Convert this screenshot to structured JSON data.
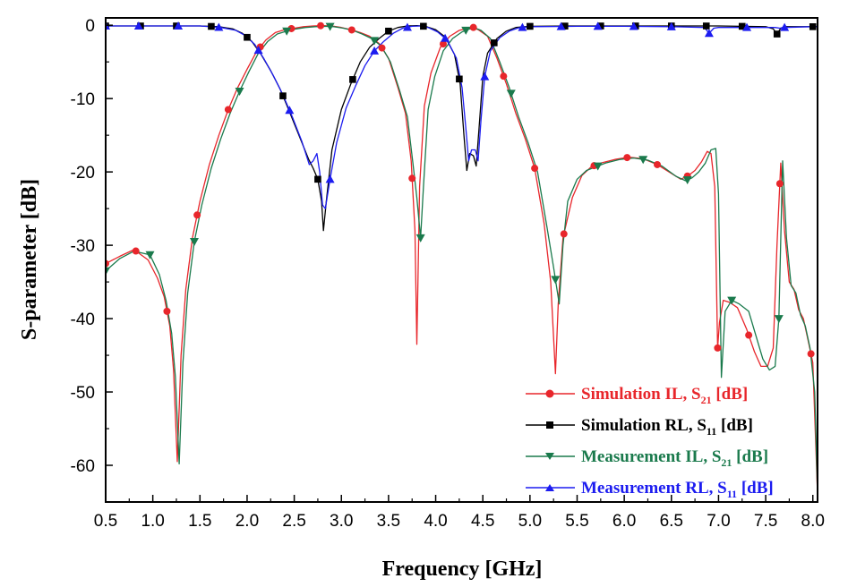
{
  "chart_data": {
    "type": "line",
    "title": "",
    "xlabel": "Frequency [GHz]",
    "ylabel": "S-parameter [dB]",
    "xlim": [
      0.5,
      8.05
    ],
    "ylim": [
      -65,
      1
    ],
    "xticks": [
      0.5,
      1.0,
      1.5,
      2.0,
      2.5,
      3.0,
      3.5,
      4.0,
      4.5,
      5.0,
      5.5,
      6.0,
      6.5,
      7.0,
      7.5,
      8.0
    ],
    "xtick_labels": [
      "0.5",
      "1.0",
      "1.5",
      "2.0",
      "2.5",
      "3.0",
      "3.5",
      "4.0",
      "4.5",
      "5.0",
      "5.5",
      "6.0",
      "6.5",
      "7.0",
      "7.5",
      "8.0"
    ],
    "yticks": [
      0,
      -10,
      -20,
      -30,
      -40,
      -50,
      -60
    ],
    "ytick_labels": [
      "0",
      "-10",
      "-20",
      "-30",
      "-40",
      "-50",
      "-60"
    ],
    "grid": false,
    "legend_position": "bottom-right",
    "series": [
      {
        "name": "Simulation IL, S21 [dB]",
        "label_main": "Simulation IL, S",
        "label_sub": "21",
        "label_tail": " [dB]",
        "color": "#e8262b",
        "marker": "circle",
        "x": [
          0.5,
          0.65,
          0.8,
          0.95,
          1.05,
          1.12,
          1.18,
          1.22,
          1.26,
          1.3,
          1.35,
          1.42,
          1.5,
          1.6,
          1.7,
          1.8,
          1.9,
          2.0,
          2.1,
          2.2,
          2.3,
          2.4,
          2.5,
          2.6,
          2.7,
          2.8,
          2.9,
          3.0,
          3.1,
          3.2,
          3.3,
          3.4,
          3.5,
          3.6,
          3.68,
          3.74,
          3.78,
          3.8,
          3.83,
          3.88,
          3.95,
          4.05,
          4.15,
          4.25,
          4.35,
          4.4,
          4.45,
          4.55,
          4.65,
          4.75,
          4.8,
          4.85,
          4.95,
          5.05,
          5.15,
          5.22,
          5.27,
          5.3,
          5.35,
          5.45,
          5.55,
          5.65,
          5.75,
          5.9,
          6.05,
          6.2,
          6.35,
          6.5,
          6.6,
          6.68,
          6.75,
          6.82,
          6.88,
          6.92,
          6.96,
          6.99,
          7.01,
          7.05,
          7.12,
          7.2,
          7.3,
          7.38,
          7.45,
          7.52,
          7.58,
          7.62,
          7.66,
          7.7,
          7.75,
          7.8,
          7.85,
          7.9,
          7.95,
          8.0,
          8.05
        ],
        "y": [
          -32.5,
          -31.5,
          -30.6,
          -32,
          -34.5,
          -37,
          -41,
          -47,
          -59.5,
          -45,
          -36,
          -29,
          -24,
          -19,
          -15,
          -11.5,
          -8.5,
          -6,
          -3.6,
          -2,
          -1,
          -0.6,
          -0.4,
          -0.2,
          -0.1,
          -0.05,
          -0.1,
          -0.3,
          -0.6,
          -1,
          -1.5,
          -2.5,
          -4.5,
          -8.5,
          -12,
          -18.5,
          -28,
          -43.5,
          -22,
          -11,
          -6.5,
          -3,
          -1.5,
          -0.7,
          -0.4,
          -0.3,
          -0.6,
          -1.5,
          -4.5,
          -8,
          -10,
          -12,
          -15.5,
          -19.5,
          -27,
          -35,
          -47.5,
          -38,
          -29,
          -23.5,
          -20.5,
          -19.3,
          -18.8,
          -18.3,
          -18,
          -18.2,
          -19,
          -20.2,
          -21,
          -20.5,
          -19.8,
          -18.6,
          -17.2,
          -17.5,
          -22,
          -44,
          -40.5,
          -37.5,
          -37.8,
          -38.5,
          -41.5,
          -44.5,
          -46.5,
          -46.5,
          -44,
          -30,
          -18.8,
          -28,
          -35,
          -36,
          -38.8,
          -40,
          -43,
          -46,
          -64
        ]
      },
      {
        "name": "Simulation RL, S11 [dB]",
        "label_main": "Simulation RL, S",
        "label_sub": "11",
        "label_tail": " [dB]",
        "color": "#000000",
        "marker": "square",
        "x": [
          0.5,
          1.0,
          1.5,
          1.7,
          1.85,
          1.95,
          2.05,
          2.15,
          2.25,
          2.35,
          2.45,
          2.55,
          2.65,
          2.7,
          2.75,
          2.79,
          2.81,
          2.84,
          2.9,
          3.0,
          3.1,
          3.2,
          3.3,
          3.4,
          3.5,
          3.6,
          3.7,
          3.8,
          3.85,
          3.9,
          4.0,
          4.1,
          4.2,
          4.26,
          4.3,
          4.33,
          4.36,
          4.4,
          4.43,
          4.46,
          4.5,
          4.55,
          4.65,
          4.75,
          4.85,
          5.0,
          5.5,
          6.0,
          6.5,
          7.0,
          7.5,
          7.58,
          7.62,
          7.66,
          7.7,
          8.0,
          8.05
        ],
        "y": [
          -0.1,
          -0.1,
          -0.1,
          -0.2,
          -0.5,
          -1.1,
          -2.2,
          -4,
          -6.2,
          -8.7,
          -11.8,
          -15,
          -18.2,
          -19.5,
          -21,
          -24,
          -28,
          -24,
          -17,
          -11.5,
          -8,
          -5,
          -3,
          -1.8,
          -0.8,
          -0.3,
          -0.1,
          -0.05,
          -0.1,
          -0.2,
          -0.6,
          -1.6,
          -4,
          -8,
          -15,
          -19.8,
          -17.5,
          -17.8,
          -19.2,
          -14,
          -7,
          -3.8,
          -1.8,
          -0.8,
          -0.3,
          -0.15,
          -0.1,
          -0.1,
          -0.1,
          -0.1,
          -0.2,
          -0.5,
          -1.2,
          -0.4,
          -0.2,
          -0.2,
          -0.2
        ]
      },
      {
        "name": "Measurement IL, S21 [dB]",
        "label_main": "Measurement IL, S",
        "label_sub": "21",
        "label_tail": " [dB]",
        "color": "#1a7a4c",
        "marker": "triangle-down",
        "x": [
          0.5,
          0.65,
          0.8,
          0.97,
          1.07,
          1.14,
          1.2,
          1.24,
          1.28,
          1.32,
          1.37,
          1.44,
          1.52,
          1.62,
          1.72,
          1.82,
          1.92,
          2.02,
          2.12,
          2.22,
          2.32,
          2.42,
          2.52,
          2.62,
          2.72,
          2.82,
          2.92,
          3.02,
          3.12,
          3.22,
          3.32,
          3.42,
          3.52,
          3.62,
          3.7,
          3.76,
          3.8,
          3.84,
          3.87,
          3.92,
          3.99,
          4.08,
          4.18,
          4.28,
          4.36,
          4.42,
          4.48,
          4.58,
          4.68,
          4.78,
          4.83,
          4.88,
          4.98,
          5.08,
          5.18,
          5.25,
          5.31,
          5.35,
          5.4,
          5.5,
          5.6,
          5.7,
          5.8,
          5.95,
          6.1,
          6.25,
          6.4,
          6.55,
          6.65,
          6.72,
          6.79,
          6.86,
          6.92,
          6.97,
          7.0,
          7.03,
          7.07,
          7.14,
          7.22,
          7.32,
          7.4,
          7.47,
          7.54,
          7.6,
          7.64,
          7.68,
          7.72,
          7.77,
          7.82,
          7.87,
          7.92,
          7.97,
          8.02,
          8.05
        ],
        "y": [
          -33.5,
          -31.8,
          -30.8,
          -31.3,
          -34,
          -37.5,
          -42,
          -48,
          -59.8,
          -46,
          -36.5,
          -29.5,
          -24.5,
          -19.5,
          -15.5,
          -12,
          -9,
          -6.3,
          -3.8,
          -2.2,
          -1.2,
          -0.8,
          -0.5,
          -0.3,
          -0.2,
          -0.15,
          -0.2,
          -0.4,
          -0.7,
          -1.2,
          -1.8,
          -2.8,
          -5,
          -9,
          -12.5,
          -19,
          -23.5,
          -29,
          -22,
          -11.5,
          -7,
          -3.5,
          -1.8,
          -0.9,
          -0.5,
          -0.4,
          -0.7,
          -1.8,
          -5,
          -8.5,
          -10.5,
          -12.5,
          -16,
          -20,
          -27.5,
          -33,
          -38,
          -30,
          -24,
          -21,
          -19.8,
          -19.3,
          -18.8,
          -18.3,
          -18.1,
          -18.4,
          -19.2,
          -20.6,
          -21.2,
          -20.8,
          -20,
          -18.8,
          -17,
          -16.8,
          -23,
          -48,
          -39,
          -37.5,
          -38,
          -39,
          -42.5,
          -45.5,
          -47,
          -46.5,
          -40,
          -18.5,
          -29,
          -35.5,
          -36.5,
          -39.5,
          -41,
          -44,
          -50,
          -64
        ]
      },
      {
        "name": "Measurement RL, S11 [dB]",
        "label_main": "Measurement RL, S",
        "label_sub": "11",
        "label_tail": " [dB]",
        "color": "#1c1cf0",
        "marker": "triangle-up",
        "x": [
          0.5,
          1.0,
          1.5,
          1.72,
          1.88,
          1.98,
          2.08,
          2.18,
          2.28,
          2.38,
          2.48,
          2.58,
          2.66,
          2.7,
          2.74,
          2.77,
          2.8,
          2.83,
          2.88,
          2.95,
          3.05,
          3.15,
          3.25,
          3.35,
          3.45,
          3.55,
          3.65,
          3.75,
          3.85,
          3.92,
          4.02,
          4.12,
          4.22,
          4.28,
          4.32,
          4.35,
          4.38,
          4.42,
          4.45,
          4.48,
          4.52,
          4.58,
          4.68,
          4.78,
          4.88,
          5.0,
          5.5,
          6.0,
          6.5,
          6.85,
          6.9,
          6.95,
          7.0,
          7.5,
          7.6,
          7.65,
          7.7,
          8.0,
          8.05
        ],
        "y": [
          -0.1,
          -0.1,
          -0.1,
          -0.3,
          -0.7,
          -1.4,
          -2.6,
          -4.6,
          -6.9,
          -9.5,
          -12.5,
          -15.8,
          -19,
          -18.5,
          -17.5,
          -20,
          -24.5,
          -25,
          -21,
          -16,
          -11.3,
          -8.3,
          -5.5,
          -3.5,
          -2.2,
          -1.1,
          -0.4,
          -0.15,
          -0.1,
          -0.3,
          -0.9,
          -2,
          -4.5,
          -8.5,
          -14,
          -18.5,
          -17,
          -17,
          -18.5,
          -13,
          -7,
          -3.5,
          -1.7,
          -0.8,
          -0.35,
          -0.2,
          -0.15,
          -0.15,
          -0.2,
          -0.3,
          -1.1,
          -0.4,
          -0.3,
          -0.3,
          -0.3,
          -0.4,
          -0.3,
          -0.2,
          -0.2
        ]
      }
    ]
  }
}
